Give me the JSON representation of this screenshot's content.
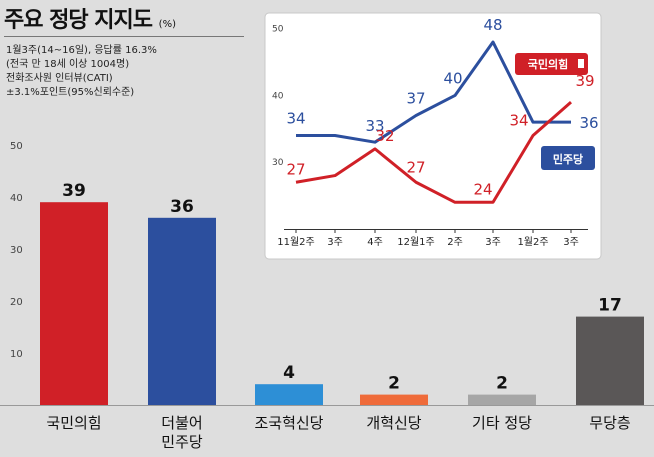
{
  "title": {
    "main": "주요 정당 지지도",
    "unit": "(%)"
  },
  "survey_lines": [
    "1월3주(14~16일), 응답률 16.3%",
    "(전국 만 18세 이상 1004명)",
    "전화조사원 인터뷰(CATI)",
    "±3.1%포인트(95%신뢰수준)"
  ],
  "colors": {
    "background": "#dedede",
    "inset_background": "#ffffff",
    "ppp_red": "#d02027",
    "dp_blue": "#2c4f9e",
    "cho_blue": "#2d8fd6",
    "reform_orange": "#ef6b3a",
    "other_gray": "#a6a6a6",
    "none_dark": "#5a5757"
  },
  "chart_data": [
    {
      "type": "bar",
      "categories": [
        "국민의힘",
        "더불어\n민주당",
        "조국혁신당",
        "개혁신당",
        "기타 정당",
        "무당층"
      ],
      "values": [
        39,
        36,
        4,
        2,
        2,
        17
      ],
      "value_labels": [
        "39",
        "36",
        "4",
        "2",
        "2",
        "17"
      ],
      "bar_colors": [
        "#d02027",
        "#2c4f9e",
        "#2d8fd6",
        "#ef6b3a",
        "#a6a6a6",
        "#5a5757"
      ],
      "yticks": [
        10,
        20,
        30,
        40,
        50
      ],
      "ylim": [
        0,
        50
      ],
      "grid": false
    },
    {
      "type": "line",
      "categories": [
        "11월2주",
        "3주",
        "4주",
        "12월1주",
        "2주",
        "3주",
        "1월2주",
        "3주"
      ],
      "yticks": [
        30,
        40,
        50
      ],
      "ylim": [
        20,
        51
      ],
      "series": [
        {
          "name": "민주당",
          "color": "#2c4f9e",
          "values": [
            34,
            34,
            33,
            37,
            40,
            48,
            36,
            36
          ],
          "shown_labels": [
            "34",
            "",
            "33",
            "37",
            "40",
            "48",
            "",
            "36"
          ]
        },
        {
          "name": "국민의힘",
          "color": "#d02027",
          "values": [
            27,
            28,
            32,
            27,
            24,
            24,
            34,
            39
          ],
          "shown_labels": [
            "27",
            "",
            "32",
            "27",
            "",
            "24",
            "34",
            "39"
          ]
        }
      ],
      "legend": "direct labels at line ends"
    }
  ]
}
